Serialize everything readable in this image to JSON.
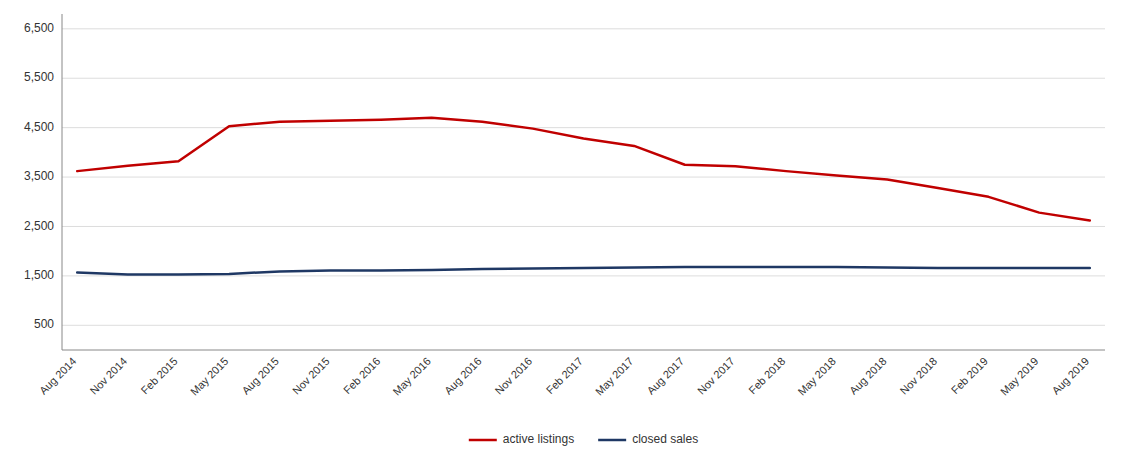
{
  "chart_data": {
    "type": "line",
    "categories": [
      "Aug 2014",
      "Nov 2014",
      "Feb 2015",
      "May 2015",
      "Aug 2015",
      "Nov 2015",
      "Feb 2016",
      "May 2016",
      "Aug 2016",
      "Nov 2016",
      "Feb 2017",
      "May 2017",
      "Aug 2017",
      "Nov 2017",
      "Feb 2018",
      "May 2018",
      "Aug 2018",
      "Nov 2018",
      "Feb 2019",
      "May 2019",
      "Aug 2019"
    ],
    "series": [
      {
        "name": "active listings",
        "color": "#c00000",
        "values": [
          3620,
          3730,
          3820,
          4530,
          4620,
          4640,
          4660,
          4700,
          4620,
          4480,
          4280,
          4130,
          3750,
          3720,
          3620,
          3530,
          3450,
          3280,
          3100,
          2780,
          2620
        ]
      },
      {
        "name": "closed sales",
        "color": "#1f3864",
        "values": [
          1570,
          1530,
          1530,
          1540,
          1590,
          1610,
          1610,
          1620,
          1640,
          1650,
          1660,
          1670,
          1680,
          1680,
          1680,
          1680,
          1670,
          1660,
          1660,
          1660,
          1660
        ]
      }
    ],
    "ylim": [
      0,
      6800
    ],
    "yticks": [
      500,
      {
        "value": 1500,
        "label": "1,500"
      },
      {
        "value": 2500,
        "label": "2,500"
      },
      {
        "value": 3500,
        "label": "3,500"
      },
      {
        "value": 4500,
        "label": "4,500"
      },
      {
        "value": 5500,
        "label": "5,500"
      },
      {
        "value": 6500,
        "label": "6,500"
      }
    ],
    "grid": true,
    "legend": "bottom"
  }
}
